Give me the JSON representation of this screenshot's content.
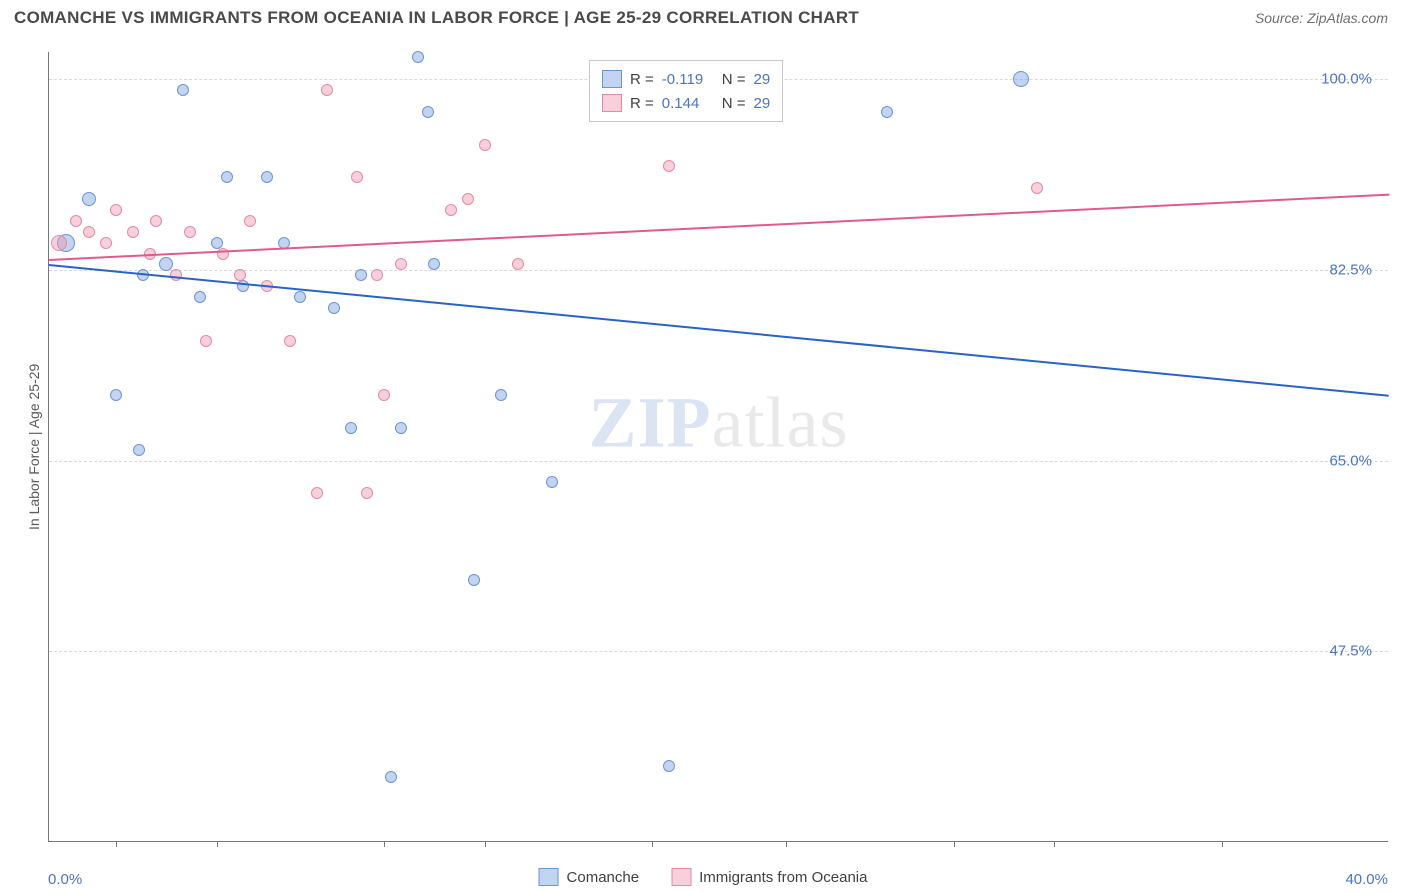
{
  "title": "COMANCHE VS IMMIGRANTS FROM OCEANIA IN LABOR FORCE | AGE 25-29 CORRELATION CHART",
  "source": "Source: ZipAtlas.com",
  "y_axis_label": "In Labor Force | Age 25-29",
  "watermark_zip": "ZIP",
  "watermark_atlas": "atlas",
  "chart": {
    "type": "scatter",
    "xlim": [
      0,
      40
    ],
    "ylim": [
      30,
      102.5
    ],
    "y_ticks": [
      47.5,
      65.0,
      82.5,
      100.0
    ],
    "y_tick_labels": [
      "47.5%",
      "65.0%",
      "82.5%",
      "100.0%"
    ],
    "x_ticks": [
      0,
      40
    ],
    "x_tick_labels": [
      "0.0%",
      "40.0%"
    ],
    "x_tick_marks": [
      2,
      5,
      10,
      13,
      18,
      22,
      27,
      30,
      35
    ],
    "background_color": "#ffffff",
    "grid_color": "#d9d9d9",
    "series": [
      {
        "name": "Comanche",
        "color_fill": "rgba(120,160,220,0.45)",
        "color_stroke": "#6a95d8",
        "trend_color": "#2962c9",
        "trend": {
          "x1": 0,
          "y1": 83.0,
          "x2": 40,
          "y2": 71.0
        },
        "R": "-0.119",
        "N": "29",
        "points": [
          {
            "x": 0.5,
            "y": 85,
            "r": 9
          },
          {
            "x": 1.2,
            "y": 89,
            "r": 7
          },
          {
            "x": 2.0,
            "y": 71,
            "r": 6
          },
          {
            "x": 2.7,
            "y": 66,
            "r": 6
          },
          {
            "x": 2.8,
            "y": 82,
            "r": 6
          },
          {
            "x": 3.5,
            "y": 83,
            "r": 7
          },
          {
            "x": 4.0,
            "y": 99,
            "r": 6
          },
          {
            "x": 4.5,
            "y": 80,
            "r": 6
          },
          {
            "x": 5.0,
            "y": 85,
            "r": 6
          },
          {
            "x": 5.3,
            "y": 91,
            "r": 6
          },
          {
            "x": 5.8,
            "y": 81,
            "r": 6
          },
          {
            "x": 6.5,
            "y": 91,
            "r": 6
          },
          {
            "x": 7.0,
            "y": 85,
            "r": 6
          },
          {
            "x": 7.5,
            "y": 80,
            "r": 6
          },
          {
            "x": 8.5,
            "y": 79,
            "r": 6
          },
          {
            "x": 9.0,
            "y": 68,
            "r": 6
          },
          {
            "x": 9.3,
            "y": 82,
            "r": 6
          },
          {
            "x": 10.2,
            "y": 36,
            "r": 6
          },
          {
            "x": 10.5,
            "y": 68,
            "r": 6
          },
          {
            "x": 11.0,
            "y": 102,
            "r": 6
          },
          {
            "x": 11.3,
            "y": 97,
            "r": 6
          },
          {
            "x": 11.5,
            "y": 83,
            "r": 6
          },
          {
            "x": 12.7,
            "y": 54,
            "r": 6
          },
          {
            "x": 13.5,
            "y": 71,
            "r": 6
          },
          {
            "x": 15.0,
            "y": 63,
            "r": 6
          },
          {
            "x": 18.0,
            "y": 97,
            "r": 6
          },
          {
            "x": 18.5,
            "y": 37,
            "r": 6
          },
          {
            "x": 25.0,
            "y": 97,
            "r": 6
          },
          {
            "x": 29.0,
            "y": 100,
            "r": 8
          }
        ]
      },
      {
        "name": "Immigrants from Oceania",
        "color_fill": "rgba(240,150,175,0.45)",
        "color_stroke": "#e48aa5",
        "trend_color": "#e05a8c",
        "trend": {
          "x1": 0,
          "y1": 83.5,
          "x2": 40,
          "y2": 89.5
        },
        "R": "0.144",
        "N": "29",
        "points": [
          {
            "x": 0.3,
            "y": 85,
            "r": 8
          },
          {
            "x": 0.8,
            "y": 87,
            "r": 6
          },
          {
            "x": 1.2,
            "y": 86,
            "r": 6
          },
          {
            "x": 1.7,
            "y": 85,
            "r": 6
          },
          {
            "x": 2.0,
            "y": 88,
            "r": 6
          },
          {
            "x": 2.5,
            "y": 86,
            "r": 6
          },
          {
            "x": 3.0,
            "y": 84,
            "r": 6
          },
          {
            "x": 3.2,
            "y": 87,
            "r": 6
          },
          {
            "x": 3.8,
            "y": 82,
            "r": 6
          },
          {
            "x": 4.2,
            "y": 86,
            "r": 6
          },
          {
            "x": 4.7,
            "y": 76,
            "r": 6
          },
          {
            "x": 5.2,
            "y": 84,
            "r": 6
          },
          {
            "x": 5.7,
            "y": 82,
            "r": 6
          },
          {
            "x": 6.0,
            "y": 87,
            "r": 6
          },
          {
            "x": 6.5,
            "y": 81,
            "r": 6
          },
          {
            "x": 7.2,
            "y": 76,
            "r": 6
          },
          {
            "x": 8.0,
            "y": 62,
            "r": 6
          },
          {
            "x": 8.3,
            "y": 99,
            "r": 6
          },
          {
            "x": 9.2,
            "y": 91,
            "r": 6
          },
          {
            "x": 9.5,
            "y": 62,
            "r": 6
          },
          {
            "x": 9.8,
            "y": 82,
            "r": 6
          },
          {
            "x": 10.0,
            "y": 71,
            "r": 6
          },
          {
            "x": 10.5,
            "y": 83,
            "r": 6
          },
          {
            "x": 12.0,
            "y": 88,
            "r": 6
          },
          {
            "x": 12.5,
            "y": 89,
            "r": 6
          },
          {
            "x": 13.0,
            "y": 94,
            "r": 6
          },
          {
            "x": 14.0,
            "y": 83,
            "r": 6
          },
          {
            "x": 18.5,
            "y": 92,
            "r": 6
          },
          {
            "x": 29.5,
            "y": 90,
            "r": 6
          }
        ]
      }
    ]
  },
  "legend_top": {
    "rows": [
      {
        "swatch_fill": "rgba(120,160,220,0.45)",
        "swatch_stroke": "#6a95d8",
        "r_label": "R =",
        "r_val": "-0.119",
        "n_label": "N =",
        "n_val": "29"
      },
      {
        "swatch_fill": "rgba(240,150,175,0.45)",
        "swatch_stroke": "#e48aa5",
        "r_label": "R =",
        "r_val": "0.144",
        "n_label": "N =",
        "n_val": "29"
      }
    ]
  },
  "legend_bottom": {
    "items": [
      {
        "swatch_fill": "rgba(120,160,220,0.45)",
        "swatch_stroke": "#6a95d8",
        "label": "Comanche"
      },
      {
        "swatch_fill": "rgba(240,150,175,0.45)",
        "swatch_stroke": "#e48aa5",
        "label": "Immigrants from Oceania"
      }
    ]
  }
}
